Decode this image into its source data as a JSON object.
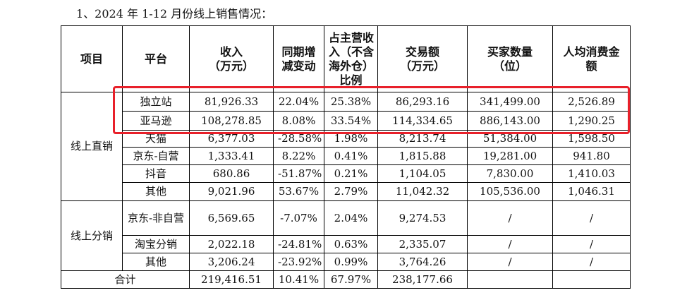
{
  "caption": "1、2024 年 1-12 月份线上销售情况：",
  "table": {
    "header": [
      [
        "项目"
      ],
      [
        "平台"
      ],
      [
        "收入",
        "（万元）"
      ],
      [
        "同期增",
        "减变动"
      ],
      [
        "占主营收",
        "入（不含",
        "海外仓）",
        "比例"
      ],
      [
        "交易额",
        "（万元）"
      ],
      [
        "买家数量",
        "（位）"
      ],
      [
        "人均消费金",
        "额"
      ]
    ],
    "groups": [
      {
        "name": "线上直销",
        "rows": [
          [
            "独立站",
            "81,926.33",
            "22.04%",
            "25.38%",
            "86,293.16",
            "341,499.00",
            "2,526.89"
          ],
          [
            "亚马逊",
            "108,278.85",
            "8.08%",
            "33.54%",
            "114,334.65",
            "886,143.00",
            "1,290.25"
          ],
          [
            "天猫",
            "6,377.03",
            "-28.58%",
            "1.98%",
            "8,213.74",
            "51,384.00",
            "1,598.50"
          ],
          [
            "京东-自营",
            "1,333.41",
            "8.22%",
            "0.41%",
            "1,815.88",
            "19,281.00",
            "941.80"
          ],
          [
            "抖音",
            "680.86",
            "-51.87%",
            "0.21%",
            "1,104.05",
            "7,830.00",
            "1,410.03"
          ],
          [
            "其他",
            "9,021.96",
            "53.67%",
            "2.79%",
            "11,042.32",
            "105,536.00",
            "1,046.31"
          ]
        ]
      },
      {
        "name": "线上分销",
        "rows": [
          [
            "京东-非自营",
            "6,569.65",
            "-7.07%",
            "2.04%",
            "9,274.53",
            "/",
            "/"
          ],
          [
            "淘宝分销",
            "2,022.18",
            "-24.81%",
            "0.63%",
            "2,335.07",
            "/",
            "/"
          ],
          [
            "其他",
            "3,206.24",
            "-23.92%",
            "0.99%",
            "3,764.26",
            "/",
            "/"
          ]
        ]
      }
    ],
    "total": {
      "label": "合计",
      "cells": [
        "219,416.51",
        "10.41%",
        "67.97%",
        "238,177.66"
      ]
    }
  }
}
